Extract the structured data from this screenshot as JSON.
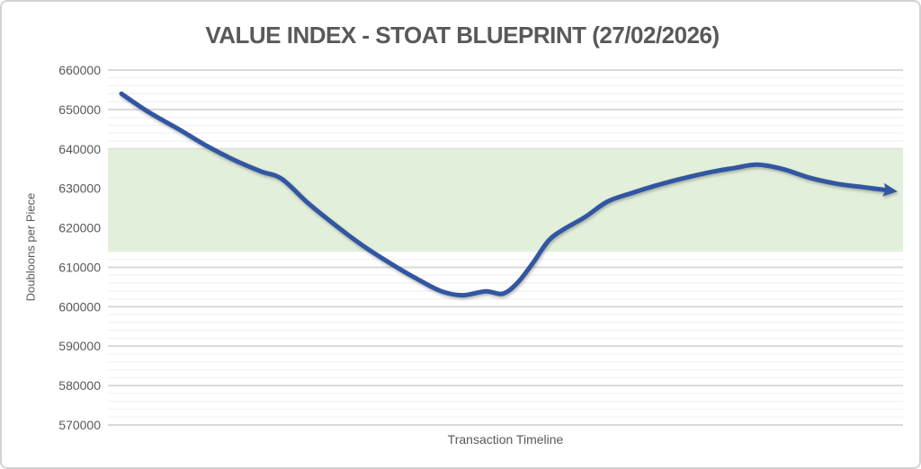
{
  "title": "VALUE INDEX - STOAT BLUEPRINT (27/02/2026)",
  "x_axis_label": "Transaction Timeline",
  "y_axis_label": "Doubloons per Piece",
  "colors": {
    "line": "#3156a2",
    "band": "#e2efda",
    "major_grid": "#d9d9d9",
    "minor_grid": "#f2f2f2",
    "text": "#595959",
    "frame_border": "#d2d2d2",
    "background": "#ffffff"
  },
  "chart_data": {
    "type": "line",
    "title": "VALUE INDEX - STOAT BLUEPRINT (27/02/2026)",
    "xlabel": "Transaction Timeline",
    "ylabel": "Doubloons per Piece",
    "ylim": [
      570000,
      660000
    ],
    "y_major_ticks": [
      570000,
      580000,
      590000,
      600000,
      610000,
      620000,
      630000,
      640000,
      650000,
      660000
    ],
    "y_minor_step": 2000,
    "grid": "horizontal major+minor, no vertical",
    "legend": "none",
    "x_tick_labels": "none (timeline axis unlabeled)",
    "band": {
      "name": "highlight-range",
      "from": 614000,
      "to": 640000
    },
    "series": [
      {
        "name": "value-index",
        "arrow_end": true,
        "points": [
          [
            0.0,
            654000
          ],
          [
            0.035,
            649400
          ],
          [
            0.073,
            645200
          ],
          [
            0.111,
            640800
          ],
          [
            0.147,
            637200
          ],
          [
            0.182,
            634300
          ],
          [
            0.209,
            632400
          ],
          [
            0.243,
            626300
          ],
          [
            0.278,
            620800
          ],
          [
            0.313,
            615700
          ],
          [
            0.348,
            611300
          ],
          [
            0.383,
            607300
          ],
          [
            0.416,
            604000
          ],
          [
            0.444,
            602900
          ],
          [
            0.475,
            603900
          ],
          [
            0.497,
            603300
          ],
          [
            0.516,
            606000
          ],
          [
            0.536,
            611000
          ],
          [
            0.557,
            616800
          ],
          [
            0.577,
            619700
          ],
          [
            0.604,
            622700
          ],
          [
            0.633,
            626600
          ],
          [
            0.665,
            628800
          ],
          [
            0.698,
            630800
          ],
          [
            0.733,
            632600
          ],
          [
            0.77,
            634200
          ],
          [
            0.8,
            635200
          ],
          [
            0.829,
            636000
          ],
          [
            0.862,
            634900
          ],
          [
            0.897,
            632700
          ],
          [
            0.932,
            631200
          ],
          [
            0.967,
            630300
          ],
          [
            1.0,
            629500
          ]
        ]
      }
    ]
  }
}
